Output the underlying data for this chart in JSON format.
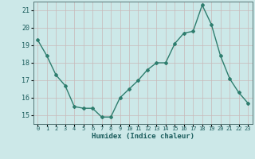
{
  "x": [
    0,
    1,
    2,
    3,
    4,
    5,
    6,
    7,
    8,
    9,
    10,
    11,
    12,
    13,
    14,
    15,
    16,
    17,
    18,
    19,
    20,
    21,
    22,
    23
  ],
  "y": [
    19.3,
    18.4,
    17.3,
    16.7,
    15.5,
    15.4,
    15.4,
    14.9,
    14.9,
    16.0,
    16.5,
    17.0,
    17.6,
    18.0,
    18.0,
    19.1,
    19.7,
    19.8,
    21.3,
    20.2,
    18.4,
    17.1,
    16.3,
    15.7
  ],
  "line_color": "#2e7d6e",
  "bg_color": "#cce8e8",
  "grid_color": "#c8b8b8",
  "xlabel": "Humidex (Indice chaleur)",
  "ylim": [
    14.5,
    21.5
  ],
  "xlim": [
    -0.5,
    23.5
  ],
  "yticks": [
    15,
    16,
    17,
    18,
    19,
    20,
    21
  ],
  "xtick_labels": [
    "0",
    "1",
    "2",
    "3",
    "4",
    "5",
    "6",
    "7",
    "8",
    "9",
    "10",
    "11",
    "12",
    "13",
    "14",
    "15",
    "16",
    "17",
    "18",
    "19",
    "20",
    "21",
    "22",
    "23"
  ],
  "marker": "D",
  "marker_size": 2.0,
  "line_width": 1.0
}
